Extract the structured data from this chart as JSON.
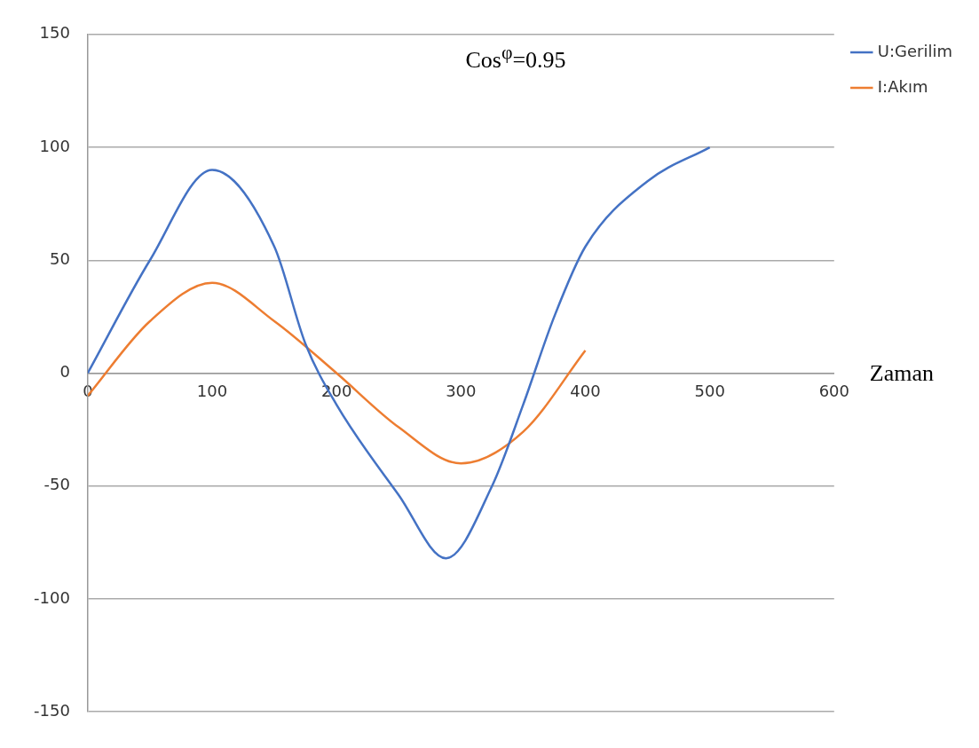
{
  "chart_data": {
    "type": "line",
    "title": "Cos$^{φ}$=0.95",
    "xlabel": "Zaman",
    "xlim": [
      0,
      600
    ],
    "xticks": [
      0,
      100,
      200,
      300,
      400,
      500,
      600
    ],
    "ylim": [
      -150,
      150
    ],
    "yticks": [
      -150,
      -100,
      -50,
      0,
      50,
      100,
      150
    ],
    "grid": "y",
    "legend": "right",
    "marker": "none",
    "line_style": "solid",
    "series": [
      {
        "name": "U:Gerilim",
        "color": "#4472c4",
        "x": [
          0,
          50,
          100,
          150,
          175,
          200,
          250,
          288,
          325,
          350,
          375,
          400,
          450,
          500
        ],
        "values": [
          0,
          50,
          90,
          56,
          13,
          -14,
          -54,
          -82,
          -50,
          -14,
          25,
          56,
          85,
          100
        ]
      },
      {
        "name": "I:Akım",
        "color": "#ed7d31",
        "x": [
          0,
          50,
          100,
          150,
          200,
          250,
          300,
          350,
          400
        ],
        "values": [
          -10,
          23,
          40,
          23,
          0,
          -24,
          -40,
          -26,
          10
        ]
      }
    ]
  }
}
